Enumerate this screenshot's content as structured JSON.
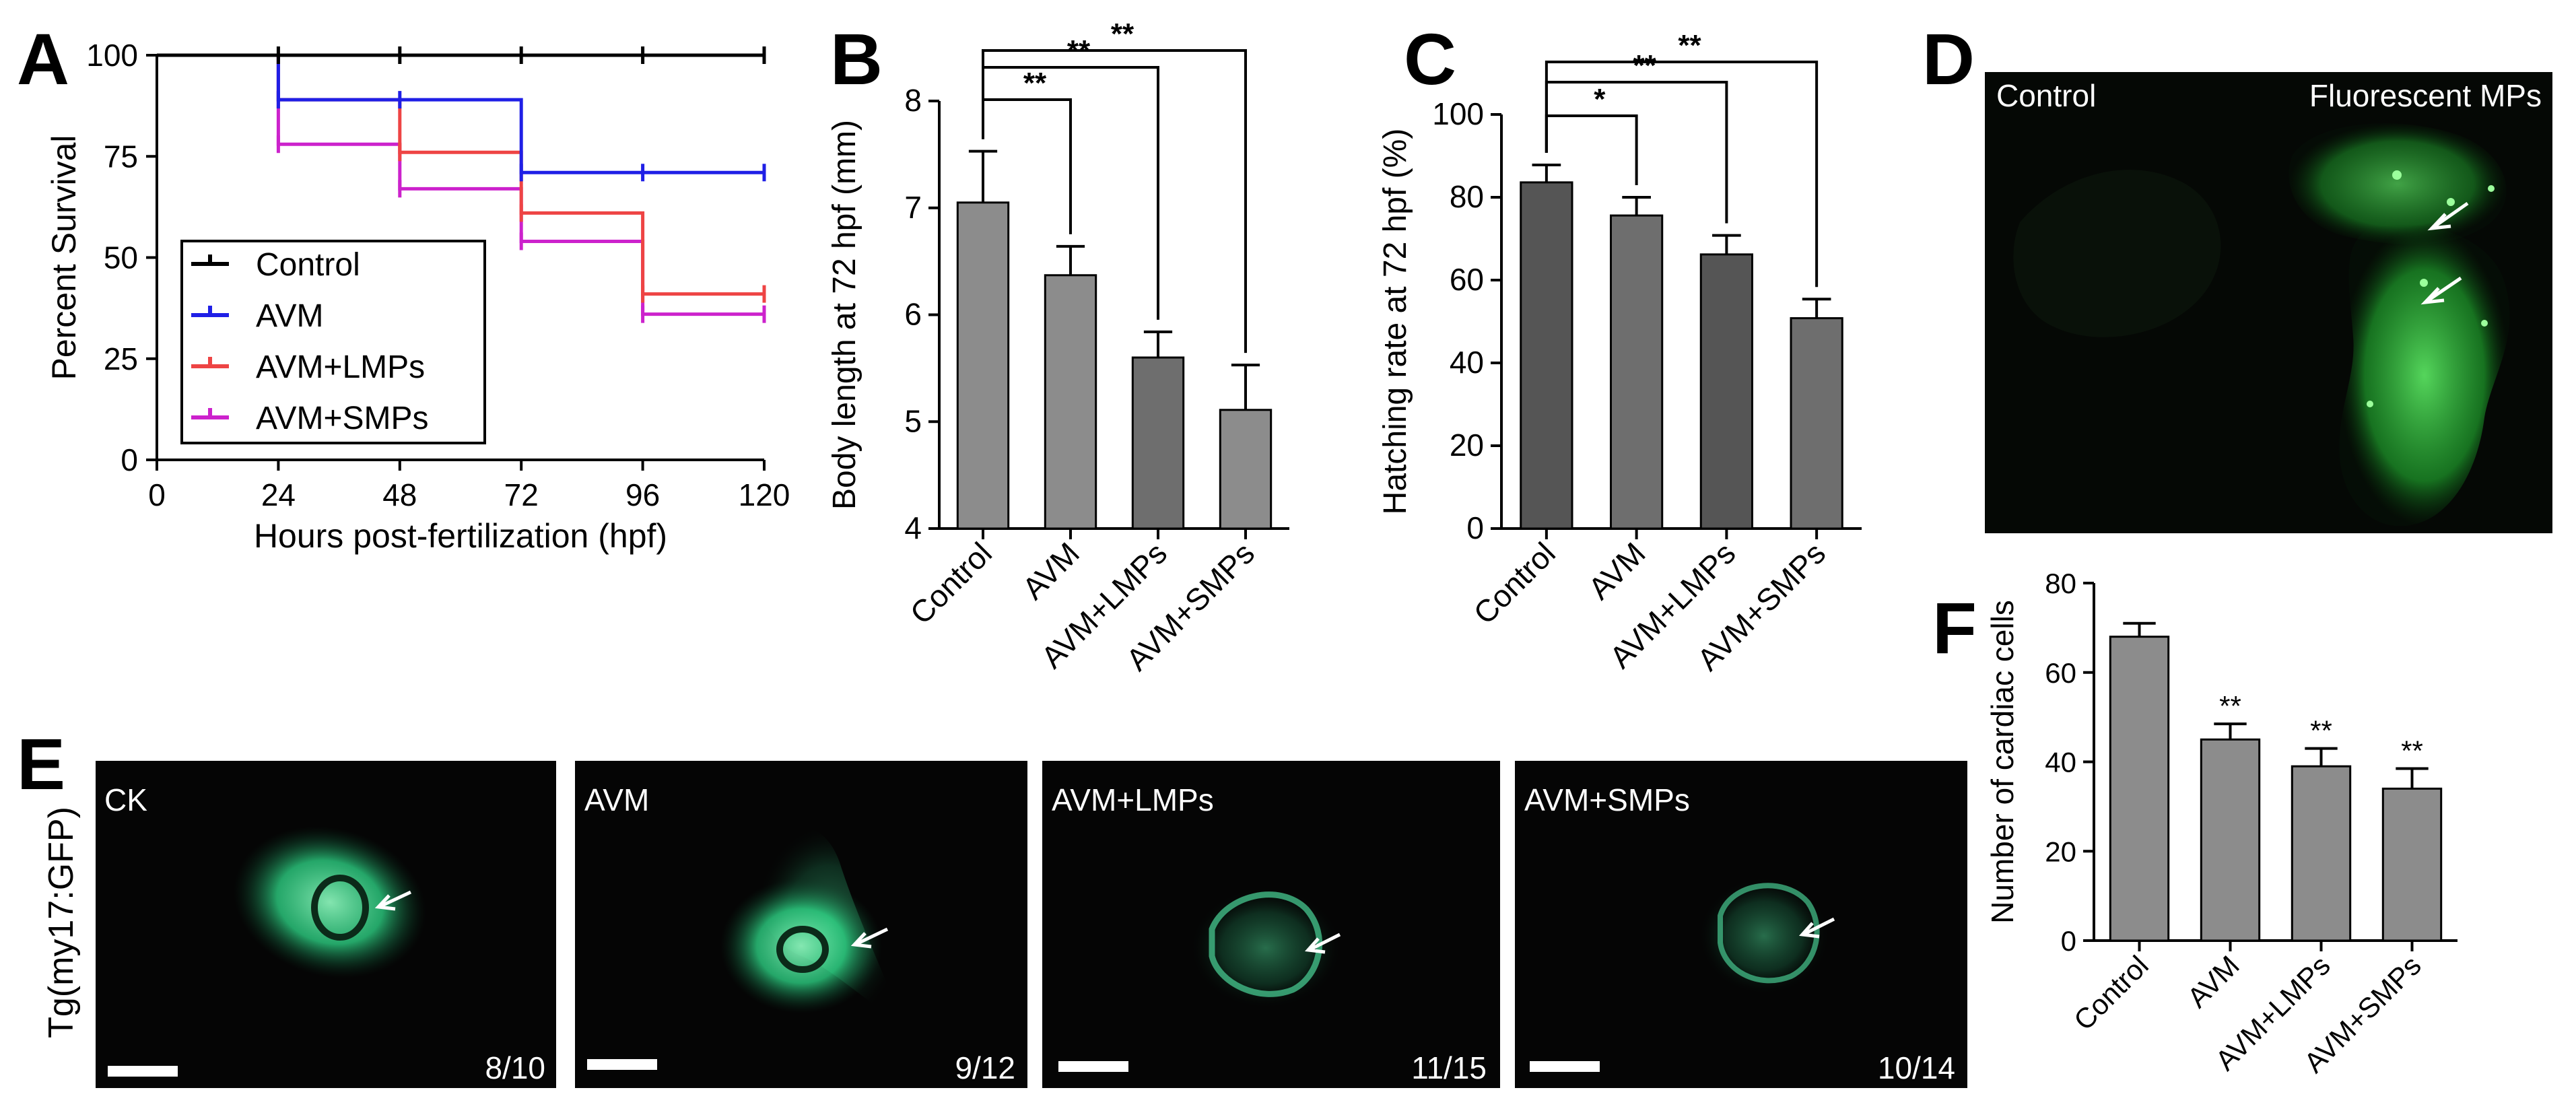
{
  "panel_letters": {
    "a": "A",
    "b": "B",
    "c": "C",
    "d": "D",
    "e": "E",
    "f": "F"
  },
  "colors": {
    "control": "#000000",
    "avm": "#1f1fe6",
    "lmp": "#ee4444",
    "smp": "#cc22cc",
    "bar_light": "#8c8c8c",
    "bar_mid": "#6e6e6e",
    "bar_dark": "#555555",
    "green": "#2fdc8a",
    "fluor": "#34d64a"
  },
  "chart_data": [
    {
      "type": "line",
      "panel": "A",
      "step": true,
      "ylabel": "Percent Survival",
      "xlabel": "Hours post-fertilization (hpf)",
      "x_ticks": [
        "0",
        "24",
        "48",
        "72",
        "96",
        "120"
      ],
      "y_ticks": [
        "0",
        "25",
        "50",
        "75",
        "100"
      ],
      "xlim": [
        0,
        120
      ],
      "ylim": [
        0,
        100
      ],
      "legend_position": "left-middle",
      "series": [
        {
          "name": "Control",
          "color": "#000000",
          "x": [
            0,
            24,
            48,
            72,
            96,
            120
          ],
          "y": [
            100,
            100,
            100,
            100,
            100,
            100
          ]
        },
        {
          "name": "AVM",
          "color": "#1f1fe6",
          "x": [
            0,
            24,
            48,
            72,
            96,
            120
          ],
          "y": [
            100,
            89,
            89,
            71,
            71,
            71
          ]
        },
        {
          "name": "AVM+LMPs",
          "color": "#ee4444",
          "x": [
            0,
            24,
            48,
            72,
            96,
            120
          ],
          "y": [
            100,
            89,
            76,
            61,
            41,
            41
          ]
        },
        {
          "name": "AVM+SMPs",
          "color": "#cc22cc",
          "x": [
            0,
            24,
            48,
            72,
            96,
            120
          ],
          "y": [
            100,
            78,
            67,
            54,
            36,
            36
          ]
        }
      ]
    },
    {
      "type": "bar",
      "panel": "B",
      "ylabel": "Body length at 72 hpf (mm)",
      "categories": [
        "Control",
        "AVM",
        "AVM+LMPs",
        "AVM+SMPs"
      ],
      "values": [
        7.05,
        6.37,
        5.6,
        5.11
      ],
      "errors": [
        0.48,
        0.27,
        0.24,
        0.42
      ],
      "y_ticks": [
        "4",
        "5",
        "6",
        "7",
        "8"
      ],
      "ylim": [
        4,
        8
      ],
      "significance": [
        "**",
        "**",
        "**"
      ]
    },
    {
      "type": "bar",
      "panel": "C",
      "ylabel": "Hatching rate at 72 hpf (%)",
      "categories": [
        "Control",
        "AVM",
        "AVM+LMPs",
        "AVM+SMPs"
      ],
      "values": [
        83.6,
        75.6,
        66.2,
        50.8
      ],
      "errors": [
        4.2,
        4.4,
        4.6,
        4.6
      ],
      "y_ticks": [
        "0",
        "20",
        "40",
        "60",
        "80",
        "100"
      ],
      "ylim": [
        0,
        100
      ],
      "significance": [
        "*",
        "**",
        "**"
      ]
    },
    {
      "type": "bar",
      "panel": "F",
      "ylabel": "Number of cardiac cells",
      "categories": [
        "Control",
        "AVM",
        "AVM+LMPs",
        "AVM+SMPs"
      ],
      "values": [
        68,
        45,
        39,
        34
      ],
      "errors": [
        3,
        3.5,
        4,
        4.5
      ],
      "y_ticks": [
        "0",
        "20",
        "40",
        "60",
        "80"
      ],
      "ylim": [
        0,
        80
      ],
      "bar_labels": [
        "",
        "**",
        "**",
        "**"
      ]
    }
  ],
  "panel_d": {
    "left_label": "Control",
    "right_label": "Fluorescent MPs"
  },
  "panel_e": {
    "row_label": "Tg(my17:GFP)",
    "images": [
      {
        "label": "CK",
        "ratio": "8/10"
      },
      {
        "label": "AVM",
        "ratio": "9/12"
      },
      {
        "label": "AVM+LMPs",
        "ratio": "11/15"
      },
      {
        "label": "AVM+SMPs",
        "ratio": "10/14"
      }
    ]
  }
}
